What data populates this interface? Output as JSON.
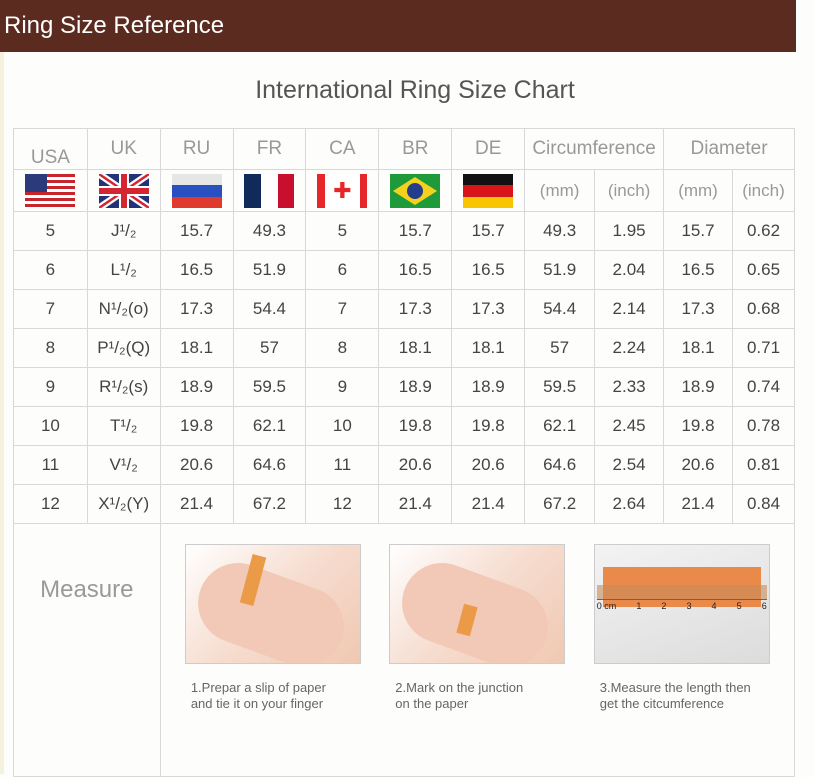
{
  "header": {
    "title": "Ring Size Reference",
    "bg_color": "#5b2b1f"
  },
  "chart_title": "International Ring Size Chart",
  "table": {
    "columns": [
      "USA",
      "UK",
      "RU",
      "FR",
      "CA",
      "BR",
      "DE",
      "Circumference",
      "Diameter"
    ],
    "sub_columns": [
      "(mm)",
      "(inch)",
      "(mm)",
      "(inch)"
    ],
    "flags": [
      "usa-flag-icon",
      "uk-flag-icon",
      "russia-flag-icon",
      "france-flag-icon",
      "canada-flag-icon",
      "brazil-flag-icon",
      "germany-flag-icon"
    ],
    "rows": [
      [
        "5",
        "J¹/₂",
        "15.7",
        "49.3",
        "5",
        "15.7",
        "15.7",
        "49.3",
        "1.95",
        "15.7",
        "0.62"
      ],
      [
        "6",
        "L¹/₂",
        "16.5",
        "51.9",
        "6",
        "16.5",
        "16.5",
        "51.9",
        "2.04",
        "16.5",
        "0.65"
      ],
      [
        "7",
        "N¹/₂(o)",
        "17.3",
        "54.4",
        "7",
        "17.3",
        "17.3",
        "54.4",
        "2.14",
        "17.3",
        "0.68"
      ],
      [
        "8",
        "P¹/₂(Q)",
        "18.1",
        "57",
        "8",
        "18.1",
        "18.1",
        "57",
        "2.24",
        "18.1",
        "0.71"
      ],
      [
        "9",
        "R¹/₂(s)",
        "18.9",
        "59.5",
        "9",
        "18.9",
        "18.9",
        "59.5",
        "2.33",
        "18.9",
        "0.74"
      ],
      [
        "10",
        "T¹/₂",
        "19.8",
        "62.1",
        "10",
        "19.8",
        "19.8",
        "62.1",
        "2.45",
        "19.8",
        "0.78"
      ],
      [
        "11",
        "V¹/₂",
        "20.6",
        "64.6",
        "11",
        "20.6",
        "20.6",
        "64.6",
        "2.54",
        "20.6",
        "0.81"
      ],
      [
        "12",
        "X¹/₂(Y)",
        "21.4",
        "67.2",
        "12",
        "21.4",
        "21.4",
        "67.2",
        "2.64",
        "21.4",
        "0.84"
      ]
    ]
  },
  "measure": {
    "label": "Measure",
    "steps": [
      {
        "line1": "1.Prepar a slip of paper",
        "line2": "and tie it on your finger"
      },
      {
        "line1": "2.Mark on the junction",
        "line2": "on the paper"
      },
      {
        "line1": "3.Measure the length then",
        "line2": "get the citcumference"
      }
    ],
    "ruler_labels": [
      "0 cm",
      "1",
      "2",
      "3",
      "4",
      "5",
      "6"
    ]
  }
}
